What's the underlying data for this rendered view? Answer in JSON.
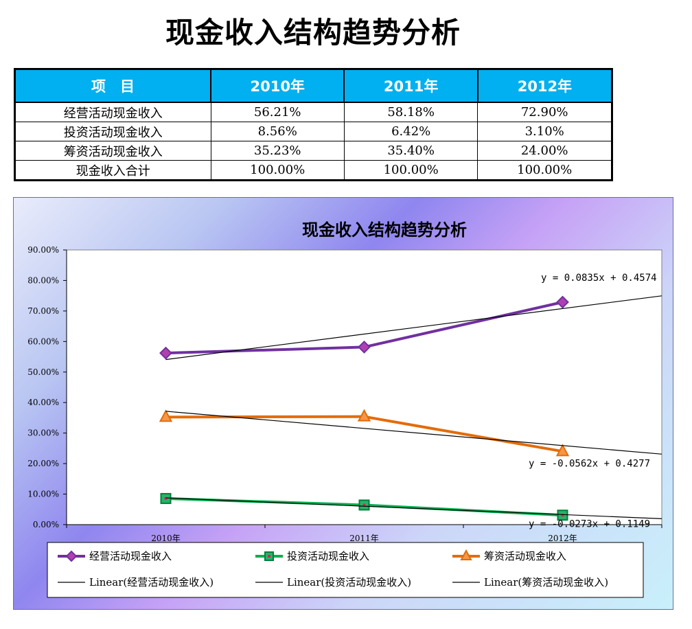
{
  "page_title": "现金收入结构趋势分析",
  "table": {
    "headers": [
      "项　目",
      "2010年",
      "2011年",
      "2012年"
    ],
    "rows": [
      [
        "经营活动现金收入",
        "56.21%",
        "58.18%",
        "72.90%"
      ],
      [
        "投资活动现金收入",
        "8.56%",
        "6.42%",
        "3.10%"
      ],
      [
        "筹资活动现金收入",
        "35.23%",
        "35.40%",
        "24.00%"
      ],
      [
        "现金收入合计",
        "100.00%",
        "100.00%",
        "100.00%"
      ]
    ],
    "header_color": "#00b0f0"
  },
  "chart_data": {
    "type": "line",
    "title": "现金收入结构趋势分析",
    "categories": [
      "2010年",
      "2011年",
      "2012年"
    ],
    "y_ticks": [
      "0.00%",
      "10.00%",
      "20.00%",
      "30.00%",
      "40.00%",
      "50.00%",
      "60.00%",
      "70.00%",
      "80.00%",
      "90.00%"
    ],
    "ylim": [
      0,
      0.9
    ],
    "grid": false,
    "legend_position": "bottom",
    "series": [
      {
        "name": "经营活动现金收入",
        "values": [
          0.5621,
          0.5818,
          0.729
        ],
        "color": "#7030a0",
        "marker": "diamond"
      },
      {
        "name": "投资活动现金收入",
        "values": [
          0.0856,
          0.0642,
          0.031
        ],
        "color": "#00b050",
        "marker": "square"
      },
      {
        "name": "筹资活动现金收入",
        "values": [
          0.3523,
          0.354,
          0.24
        ],
        "color": "#e36c09",
        "marker": "triangle"
      }
    ],
    "trendlines": [
      {
        "name": "Linear(经营活动现金收入)",
        "slope": 0.0835,
        "intercept": 0.4574,
        "equation": "y = 0.0835x + 0.4574"
      },
      {
        "name": "Linear(投资活动现金收入)",
        "slope": -0.0273,
        "intercept": 0.1149,
        "equation": "y = -0.0273x + 0.1149"
      },
      {
        "name": "Linear(筹资活动现金收入)",
        "slope": -0.0562,
        "intercept": 0.4277,
        "equation": "y = -0.0562x + 0.4277"
      }
    ]
  }
}
